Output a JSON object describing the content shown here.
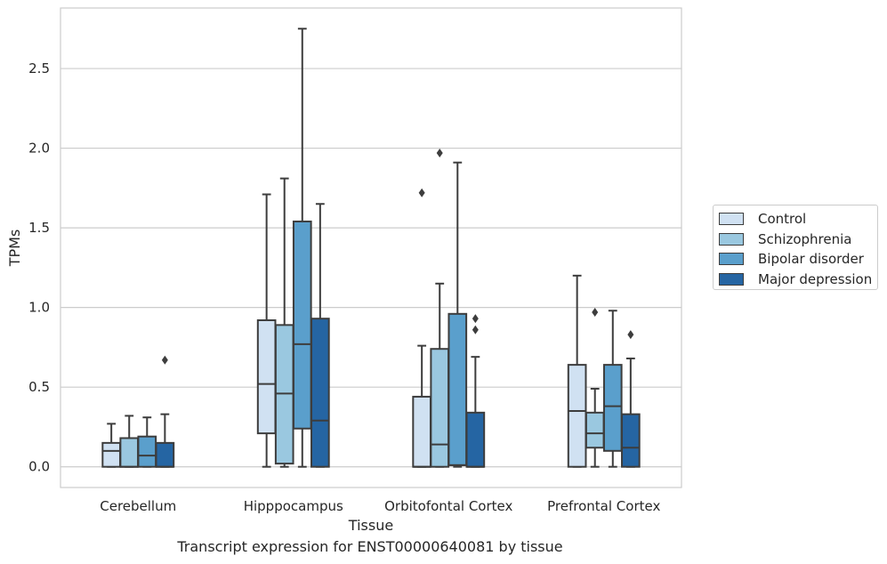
{
  "chart_data": {
    "type": "boxplot",
    "title": "Transcript expression for ENST00000640081 by tissue",
    "xlabel": "Tissue",
    "ylabel": "TPMs",
    "ylim": [
      -0.13,
      2.88
    ],
    "yticks": [
      "0.0",
      "0.5",
      "1.0",
      "1.5",
      "2.0",
      "2.5"
    ],
    "grid": true,
    "legend_position": "right",
    "categories": [
      "Cerebellum",
      "Hipppocampus",
      "Orbitofontal Cortex",
      "Prefrontal Cortex"
    ],
    "series": [
      {
        "name": "Control",
        "color": "#d0e1f2",
        "boxes": [
          {
            "min": 0.0,
            "q1": 0.0,
            "median": 0.1,
            "q3": 0.15,
            "max": 0.27,
            "outliers": []
          },
          {
            "min": 0.0,
            "q1": 0.21,
            "median": 0.52,
            "q3": 0.92,
            "max": 1.71,
            "outliers": []
          },
          {
            "min": 0.0,
            "q1": 0.0,
            "median": 0.0,
            "q3": 0.44,
            "max": 0.76,
            "outliers": [
              1.72
            ]
          },
          {
            "min": 0.0,
            "q1": 0.0,
            "median": 0.35,
            "q3": 0.64,
            "max": 1.2,
            "outliers": []
          }
        ]
      },
      {
        "name": "Schizophrenia",
        "color": "#9ac8e0",
        "boxes": [
          {
            "min": 0.0,
            "q1": 0.0,
            "median": 0.0,
            "q3": 0.18,
            "max": 0.32,
            "outliers": []
          },
          {
            "min": 0.0,
            "q1": 0.02,
            "median": 0.46,
            "q3": 0.89,
            "max": 1.81,
            "outliers": []
          },
          {
            "min": 0.0,
            "q1": 0.0,
            "median": 0.14,
            "q3": 0.74,
            "max": 1.15,
            "outliers": [
              1.97
            ]
          },
          {
            "min": 0.0,
            "q1": 0.12,
            "median": 0.21,
            "q3": 0.34,
            "max": 0.49,
            "outliers": [
              0.97
            ]
          }
        ]
      },
      {
        "name": "Bipolar disorder",
        "color": "#5a9fcc",
        "boxes": [
          {
            "min": 0.0,
            "q1": 0.0,
            "median": 0.07,
            "q3": 0.19,
            "max": 0.31,
            "outliers": []
          },
          {
            "min": 0.0,
            "q1": 0.24,
            "median": 0.77,
            "q3": 1.54,
            "max": 2.75,
            "outliers": []
          },
          {
            "min": 0.0,
            "q1": 0.01,
            "median": 0.01,
            "q3": 0.96,
            "max": 1.91,
            "outliers": []
          },
          {
            "min": 0.0,
            "q1": 0.1,
            "median": 0.38,
            "q3": 0.64,
            "max": 0.98,
            "outliers": []
          }
        ]
      },
      {
        "name": "Major depression",
        "color": "#2565a3",
        "boxes": [
          {
            "min": 0.0,
            "q1": 0.0,
            "median": 0.0,
            "q3": 0.15,
            "max": 0.33,
            "outliers": [
              0.67
            ]
          },
          {
            "min": 0.0,
            "q1": 0.0,
            "median": 0.29,
            "q3": 0.93,
            "max": 1.65,
            "outliers": []
          },
          {
            "min": 0.0,
            "q1": 0.0,
            "median": 0.0,
            "q3": 0.34,
            "max": 0.69,
            "outliers": [
              0.86,
              0.93
            ]
          },
          {
            "min": 0.0,
            "q1": 0.0,
            "median": 0.12,
            "q3": 0.33,
            "max": 0.68,
            "outliers": [
              0.83
            ]
          }
        ]
      }
    ]
  }
}
